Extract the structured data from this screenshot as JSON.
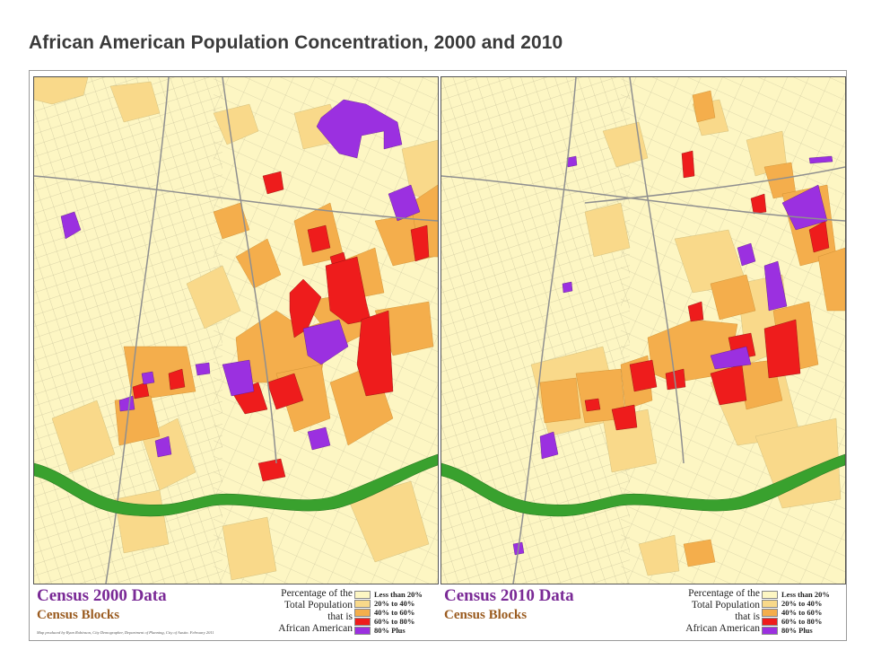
{
  "title": "African American Population Concentration, 2000 and 2010",
  "colors": {
    "c1": "#fdf6c3",
    "c2": "#f9d98a",
    "c3": "#f4ae4c",
    "c4": "#ee1c1c",
    "c5": "#9b30e0",
    "river": "#39a12e",
    "street": "#b5b08e",
    "highway": "#9a9a9a"
  },
  "legend_categories": [
    "Less than 20%",
    "20% to 40%",
    "40% to 60%",
    "60% to 80%",
    "80% Plus"
  ],
  "panels": [
    {
      "census_title": "Census 2000 Data",
      "census_subtitle": "Census Blocks",
      "pct_label_1": "Percentage of the",
      "pct_label_2": "Total Population",
      "pct_label_3": "that is",
      "pct_label_4": "African American",
      "credit": "Map produced by Ryan Robinson, City Demographer, Department of Planning, City of Austin. February 2011"
    },
    {
      "census_title": "Census 2010 Data",
      "census_subtitle": "Census Blocks",
      "pct_label_1": "Percentage of the",
      "pct_label_2": "Total Population",
      "pct_label_3": "that is",
      "pct_label_4": "African American"
    }
  ]
}
